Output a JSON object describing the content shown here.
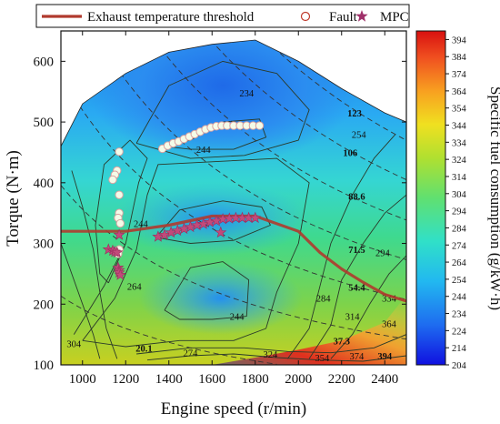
{
  "chart_data": {
    "type": "heatmap",
    "xlabel": "Engine speed (r/min)",
    "ylabel": "Torque (N·m)",
    "colorbar_label": "Specific fuel consumption (g/kW·h)",
    "xlim": [
      900,
      2500
    ],
    "ylim": [
      100,
      650
    ],
    "x_ticks": [
      "1000",
      "1200",
      "1400",
      "1600",
      "1800",
      "2000",
      "2200",
      "2400"
    ],
    "y_ticks": [
      "100",
      "200",
      "300",
      "400",
      "500",
      "600"
    ],
    "colorbar_range": [
      204,
      399
    ],
    "colorbar_ticks": [
      "204",
      "214",
      "224",
      "234",
      "244",
      "254",
      "264",
      "274",
      "284",
      "294",
      "304",
      "314",
      "324",
      "334",
      "344",
      "354",
      "364",
      "374",
      "384",
      "394"
    ],
    "legend": {
      "placement": "top",
      "entries": [
        {
          "label": "Exhaust temperature threshold",
          "marker": "line",
          "color": "#c0392b"
        },
        {
          "label": "Fault",
          "marker": "open-circle",
          "color": "#c0392b"
        },
        {
          "label": "MPC",
          "marker": "star",
          "color": "#a0306a"
        }
      ]
    },
    "contour_labels": [
      {
        "text": "234",
        "x": 1760,
        "y": 548,
        "bold": false
      },
      {
        "text": "123",
        "x": 2260,
        "y": 515,
        "bold": true
      },
      {
        "text": "254",
        "x": 2280,
        "y": 480,
        "bold": false
      },
      {
        "text": "106",
        "x": 2240,
        "y": 450,
        "bold": true
      },
      {
        "text": "244",
        "x": 1560,
        "y": 455,
        "bold": false
      },
      {
        "text": "88.6",
        "x": 2270,
        "y": 378,
        "bold": true
      },
      {
        "text": "244",
        "x": 1270,
        "y": 333,
        "bold": false
      },
      {
        "text": "71.5",
        "x": 2270,
        "y": 290,
        "bold": true
      },
      {
        "text": "294",
        "x": 2390,
        "y": 285,
        "bold": false
      },
      {
        "text": "264",
        "x": 1240,
        "y": 230,
        "bold": false
      },
      {
        "text": "54.4",
        "x": 2270,
        "y": 228,
        "bold": true
      },
      {
        "text": "334",
        "x": 2420,
        "y": 210,
        "bold": false
      },
      {
        "text": "284",
        "x": 2115,
        "y": 210,
        "bold": false
      },
      {
        "text": "244",
        "x": 1715,
        "y": 180,
        "bold": false
      },
      {
        "text": "314",
        "x": 2250,
        "y": 180,
        "bold": false
      },
      {
        "text": "364",
        "x": 2420,
        "y": 168,
        "bold": false
      },
      {
        "text": "304",
        "x": 960,
        "y": 135,
        "bold": false
      },
      {
        "text": "37.3",
        "x": 2200,
        "y": 140,
        "bold": true
      },
      {
        "text": "20.1",
        "x": 1285,
        "y": 128,
        "bold": true
      },
      {
        "text": "274",
        "x": 1500,
        "y": 120,
        "bold": false
      },
      {
        "text": "324",
        "x": 1870,
        "y": 118,
        "bold": false
      },
      {
        "text": "354",
        "x": 2110,
        "y": 112,
        "bold": false
      },
      {
        "text": "374",
        "x": 2270,
        "y": 115,
        "bold": false
      },
      {
        "text": "394",
        "x": 2400,
        "y": 115,
        "bold": true
      }
    ],
    "series": [
      {
        "name": "Exhaust temperature threshold",
        "kind": "line",
        "x": [
          900,
          1200,
          1400,
          1600,
          1800,
          2000,
          2100,
          2200,
          2300,
          2400,
          2500
        ],
        "y": [
          320,
          320,
          330,
          345,
          345,
          320,
          285,
          258,
          236,
          216,
          205
        ]
      },
      {
        "name": "Fault",
        "kind": "scatter",
        "x": [
          1370,
          1395,
          1420,
          1445,
          1470,
          1495,
          1520,
          1545,
          1570,
          1595,
          1620,
          1645,
          1670,
          1700,
          1730,
          1760,
          1790,
          1820,
          1170,
          1160,
          1150,
          1140,
          1170,
          1170,
          1165,
          1175,
          1170,
          1165
        ],
        "y": [
          456,
          461,
          465,
          468,
          472,
          476,
          480,
          484,
          488,
          491,
          493,
          494,
          494,
          494,
          494,
          494,
          494,
          494,
          451,
          420,
          413,
          405,
          380,
          350,
          342,
          333,
          290,
          283
        ]
      },
      {
        "name": "MPC",
        "kind": "scatter",
        "x": [
          1350,
          1380,
          1410,
          1440,
          1470,
          1500,
          1530,
          1560,
          1590,
          1620,
          1650,
          1680,
          1710,
          1740,
          1770,
          1800,
          1640,
          1120,
          1140,
          1150,
          1160,
          1165,
          1170,
          1170,
          1175,
          1170
        ],
        "y": [
          311,
          314,
          318,
          321,
          324,
          327,
          330,
          332,
          335,
          337,
          340,
          341,
          342,
          342,
          342,
          342,
          318,
          290,
          288,
          286,
          285,
          260,
          256,
          252,
          248,
          314
        ]
      }
    ]
  }
}
